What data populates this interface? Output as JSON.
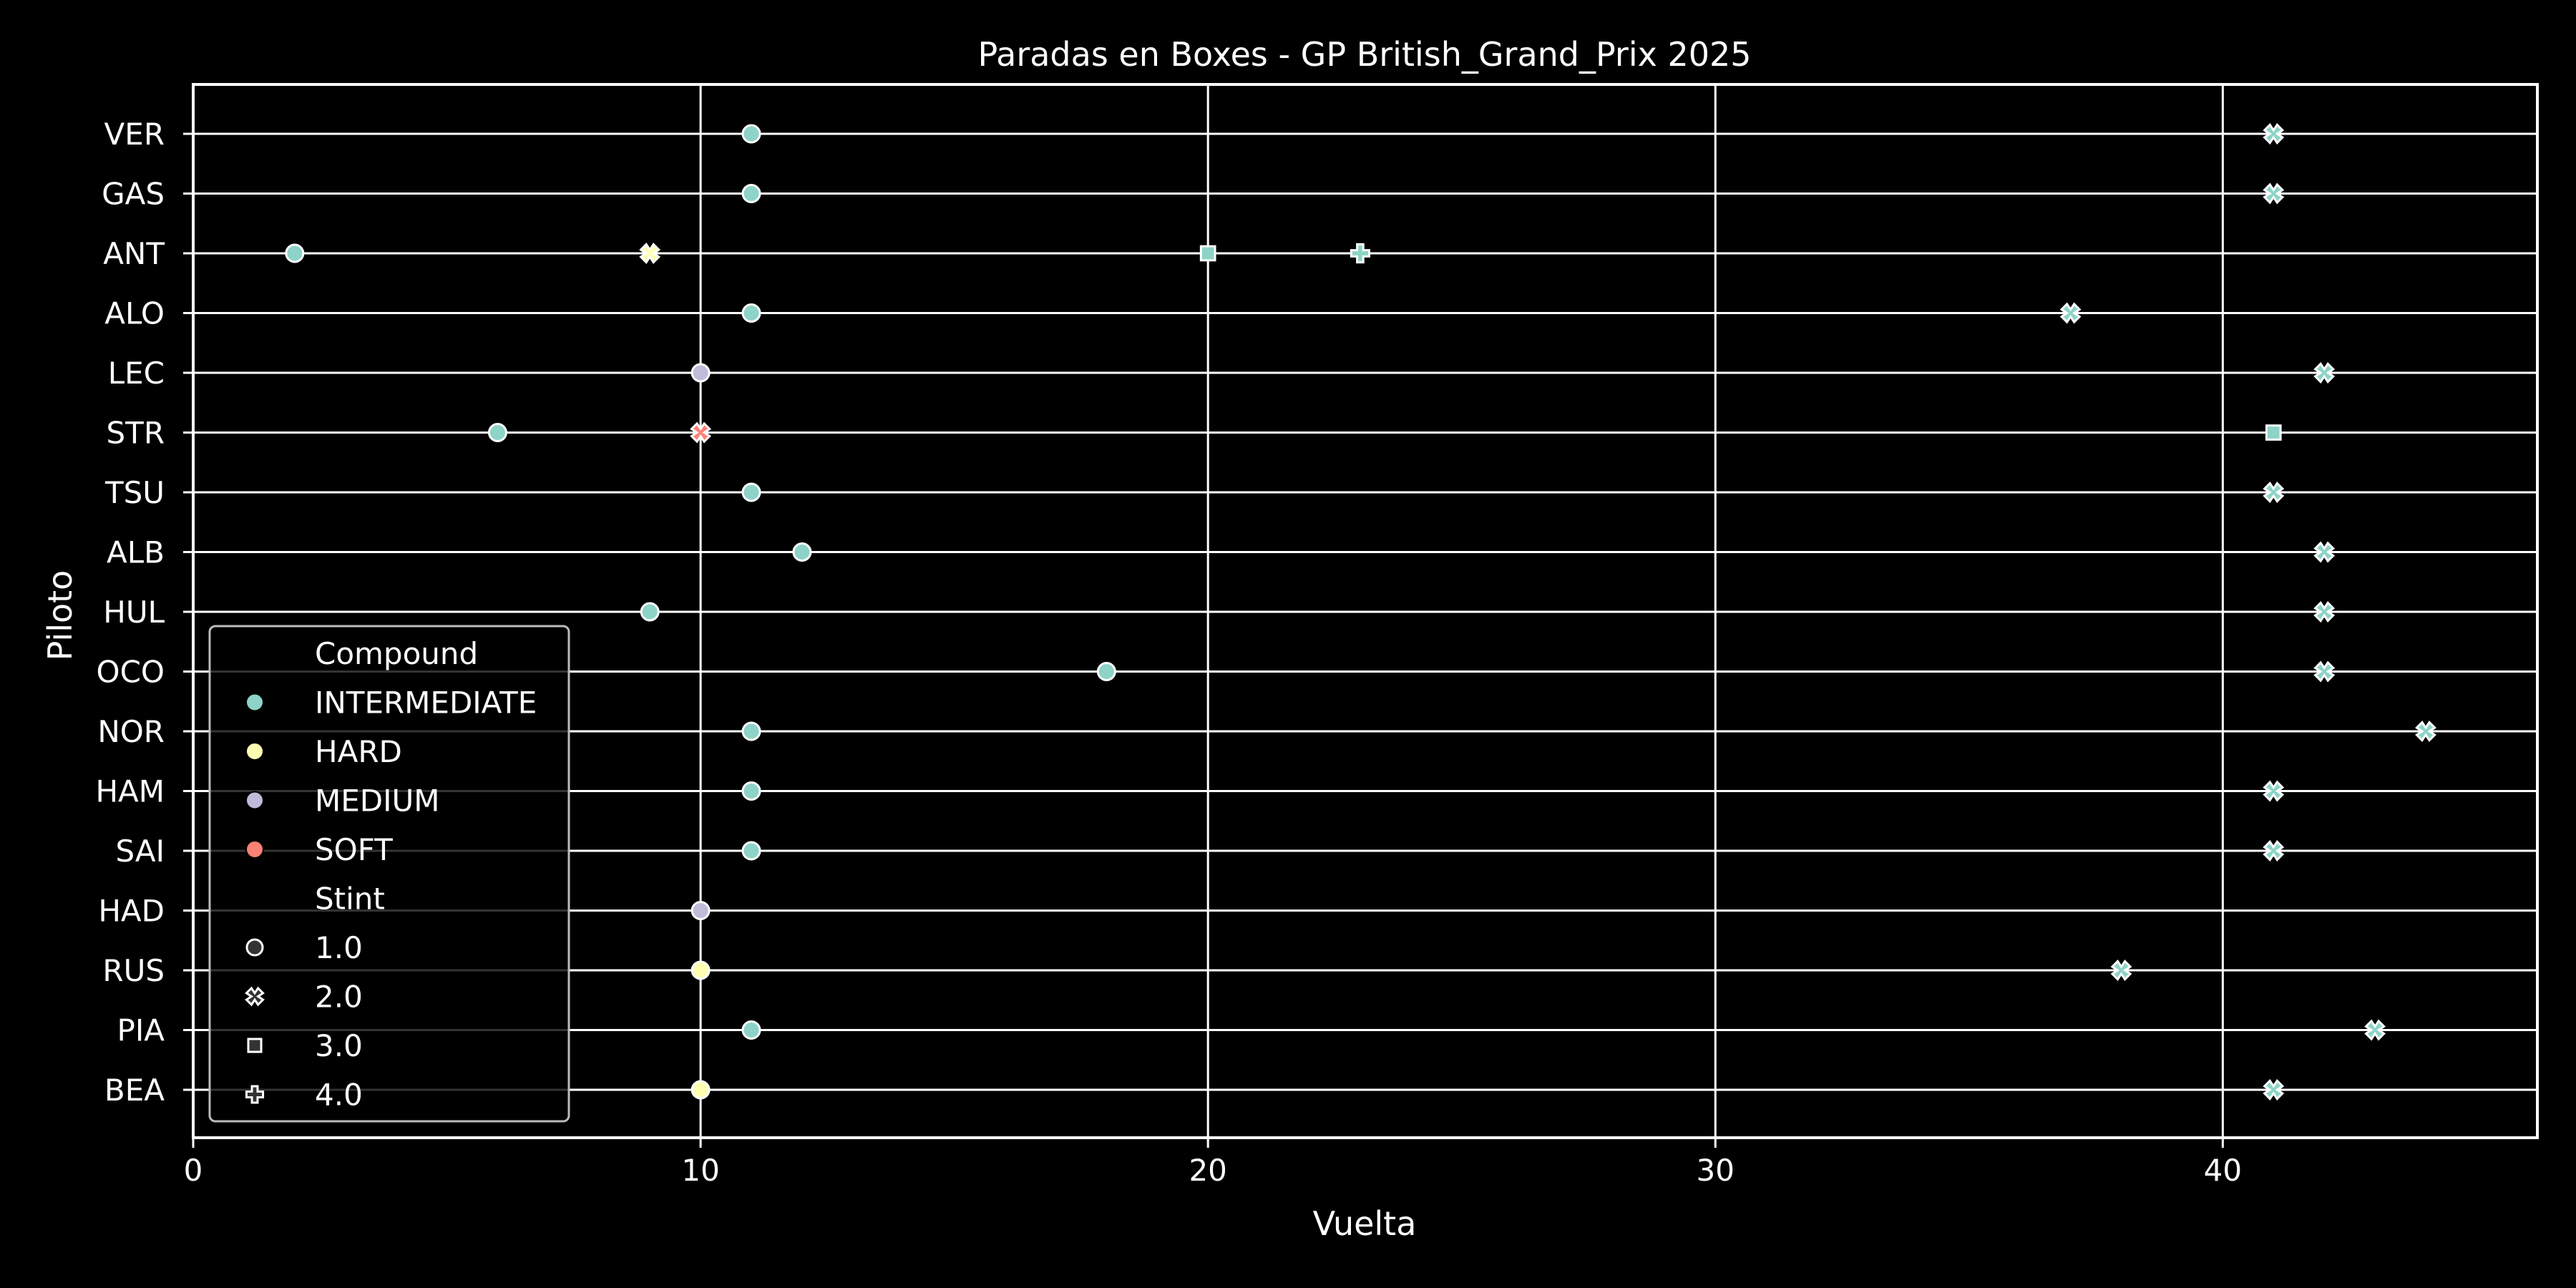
{
  "chart_data": {
    "type": "scatter",
    "title": "Paradas en Boxes - GP British_Grand_Prix 2025",
    "xlabel": "Vuelta",
    "ylabel": "Piloto",
    "xlim": [
      0,
      46.2
    ],
    "x_ticks": [
      0,
      10,
      20,
      30,
      40
    ],
    "grid": true,
    "background": "#000000",
    "drivers": [
      "VER",
      "GAS",
      "ANT",
      "ALO",
      "LEC",
      "STR",
      "TSU",
      "ALB",
      "HUL",
      "OCO",
      "NOR",
      "HAM",
      "SAI",
      "HAD",
      "RUS",
      "PIA",
      "BEA"
    ],
    "compound_colors": {
      "INTERMEDIATE": "#8dd3c7",
      "HARD": "#feffb3",
      "MEDIUM": "#bfbbd9",
      "SOFT": "#fa8174"
    },
    "legend": {
      "position": "lower-left",
      "compound_title": "Compound",
      "compounds": [
        "INTERMEDIATE",
        "HARD",
        "MEDIUM",
        "SOFT"
      ],
      "stint_title": "Stint",
      "stints": [
        {
          "label": "1.0",
          "marker": "circle"
        },
        {
          "label": "2.0",
          "marker": "x"
        },
        {
          "label": "3.0",
          "marker": "square"
        },
        {
          "label": "4.0",
          "marker": "plus"
        }
      ]
    },
    "points": [
      {
        "driver": "VER",
        "lap": 11,
        "compound": "INTERMEDIATE",
        "stint": 1
      },
      {
        "driver": "VER",
        "lap": 41,
        "compound": "INTERMEDIATE",
        "stint": 2
      },
      {
        "driver": "GAS",
        "lap": 11,
        "compound": "INTERMEDIATE",
        "stint": 1
      },
      {
        "driver": "GAS",
        "lap": 41,
        "compound": "INTERMEDIATE",
        "stint": 2
      },
      {
        "driver": "ANT",
        "lap": 2,
        "compound": "INTERMEDIATE",
        "stint": 1
      },
      {
        "driver": "ANT",
        "lap": 9,
        "compound": "HARD",
        "stint": 2
      },
      {
        "driver": "ANT",
        "lap": 20,
        "compound": "INTERMEDIATE",
        "stint": 3
      },
      {
        "driver": "ANT",
        "lap": 23,
        "compound": "INTERMEDIATE",
        "stint": 4
      },
      {
        "driver": "ALO",
        "lap": 11,
        "compound": "INTERMEDIATE",
        "stint": 1
      },
      {
        "driver": "ALO",
        "lap": 37,
        "compound": "INTERMEDIATE",
        "stint": 2
      },
      {
        "driver": "LEC",
        "lap": 10,
        "compound": "MEDIUM",
        "stint": 1
      },
      {
        "driver": "LEC",
        "lap": 42,
        "compound": "INTERMEDIATE",
        "stint": 2
      },
      {
        "driver": "STR",
        "lap": 6,
        "compound": "INTERMEDIATE",
        "stint": 1
      },
      {
        "driver": "STR",
        "lap": 10,
        "compound": "SOFT",
        "stint": 2
      },
      {
        "driver": "STR",
        "lap": 41,
        "compound": "INTERMEDIATE",
        "stint": 3
      },
      {
        "driver": "TSU",
        "lap": 11,
        "compound": "INTERMEDIATE",
        "stint": 1
      },
      {
        "driver": "TSU",
        "lap": 41,
        "compound": "INTERMEDIATE",
        "stint": 2
      },
      {
        "driver": "ALB",
        "lap": 12,
        "compound": "INTERMEDIATE",
        "stint": 1
      },
      {
        "driver": "ALB",
        "lap": 42,
        "compound": "INTERMEDIATE",
        "stint": 2
      },
      {
        "driver": "HUL",
        "lap": 9,
        "compound": "INTERMEDIATE",
        "stint": 1
      },
      {
        "driver": "HUL",
        "lap": 42,
        "compound": "INTERMEDIATE",
        "stint": 2
      },
      {
        "driver": "OCO",
        "lap": 18,
        "compound": "INTERMEDIATE",
        "stint": 1
      },
      {
        "driver": "OCO",
        "lap": 42,
        "compound": "INTERMEDIATE",
        "stint": 2
      },
      {
        "driver": "NOR",
        "lap": 11,
        "compound": "INTERMEDIATE",
        "stint": 1
      },
      {
        "driver": "NOR",
        "lap": 44,
        "compound": "INTERMEDIATE",
        "stint": 2
      },
      {
        "driver": "HAM",
        "lap": 11,
        "compound": "INTERMEDIATE",
        "stint": 1
      },
      {
        "driver": "HAM",
        "lap": 41,
        "compound": "INTERMEDIATE",
        "stint": 2
      },
      {
        "driver": "SAI",
        "lap": 11,
        "compound": "INTERMEDIATE",
        "stint": 1
      },
      {
        "driver": "SAI",
        "lap": 41,
        "compound": "INTERMEDIATE",
        "stint": 2
      },
      {
        "driver": "HAD",
        "lap": 10,
        "compound": "MEDIUM",
        "stint": 1
      },
      {
        "driver": "RUS",
        "lap": 10,
        "compound": "HARD",
        "stint": 1
      },
      {
        "driver": "RUS",
        "lap": 38,
        "compound": "INTERMEDIATE",
        "stint": 2
      },
      {
        "driver": "PIA",
        "lap": 11,
        "compound": "INTERMEDIATE",
        "stint": 1
      },
      {
        "driver": "PIA",
        "lap": 43,
        "compound": "INTERMEDIATE",
        "stint": 2
      },
      {
        "driver": "BEA",
        "lap": 10,
        "compound": "HARD",
        "stint": 1
      },
      {
        "driver": "BEA",
        "lap": 41,
        "compound": "INTERMEDIATE",
        "stint": 2
      }
    ]
  }
}
